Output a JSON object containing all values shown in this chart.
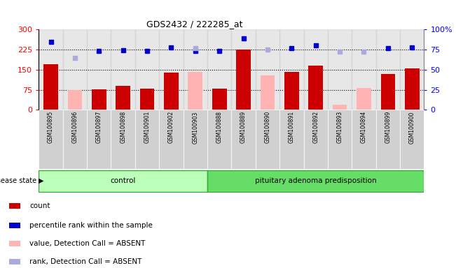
{
  "title": "GDS2432 / 222285_at",
  "samples": [
    "GSM100895",
    "GSM100896",
    "GSM100897",
    "GSM100898",
    "GSM100901",
    "GSM100902",
    "GSM100903",
    "GSM100888",
    "GSM100889",
    "GSM100890",
    "GSM100891",
    "GSM100892",
    "GSM100893",
    "GSM100894",
    "GSM100899",
    "GSM100900"
  ],
  "group_labels": [
    "control",
    "pituitary adenoma predisposition"
  ],
  "n_control": 7,
  "n_pituitary": 9,
  "ylim_left": [
    0,
    300
  ],
  "ylim_right": [
    0,
    100
  ],
  "yticks_left": [
    0,
    75,
    150,
    225,
    300
  ],
  "yticks_right": [
    0,
    25,
    50,
    75,
    100
  ],
  "hlines": [
    75,
    150,
    225
  ],
  "bar_values": [
    170,
    null,
    77,
    90,
    78,
    138,
    null,
    78,
    225,
    null,
    143,
    165,
    null,
    null,
    135,
    155
  ],
  "pink_values": [
    null,
    73,
    null,
    null,
    null,
    null,
    143,
    null,
    null,
    128,
    null,
    null,
    20,
    83,
    null,
    null
  ],
  "blue_pct": [
    85,
    null,
    73,
    74,
    73,
    78,
    73,
    73,
    89,
    null,
    77,
    80,
    null,
    null,
    77,
    78
  ],
  "lavender_pct": [
    null,
    65,
    null,
    null,
    null,
    null,
    77,
    null,
    null,
    75,
    null,
    null,
    72,
    72,
    null,
    null
  ],
  "bar_color": "#cc0000",
  "pink_color": "#ffb3b3",
  "blue_color": "#0000cc",
  "lavender_color": "#aaaadd",
  "control_fill": "#bbffbb",
  "pituitary_fill": "#66dd66",
  "legend_items": [
    "count",
    "percentile rank within the sample",
    "value, Detection Call = ABSENT",
    "rank, Detection Call = ABSENT"
  ],
  "legend_colors": [
    "#cc0000",
    "#0000cc",
    "#ffb3b3",
    "#aaaadd"
  ]
}
